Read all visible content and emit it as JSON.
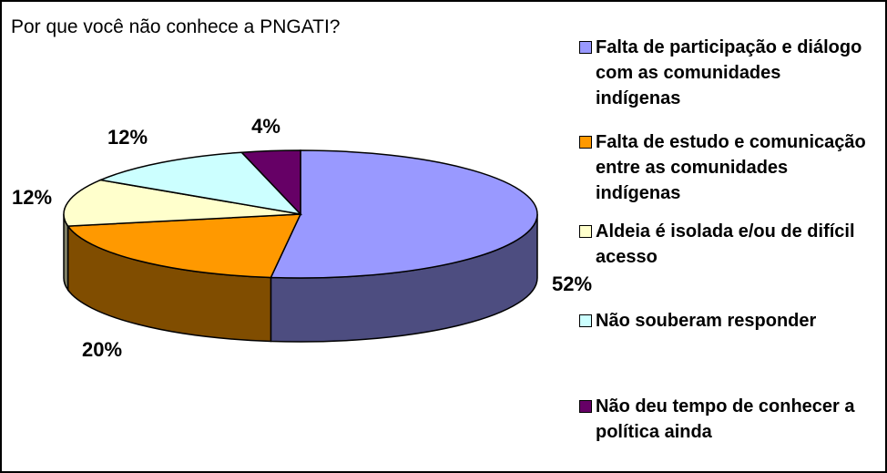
{
  "chart_data": {
    "type": "pie3d",
    "title": "Por que você não conhece a PNGATI?",
    "categories": [
      "Falta de participação e diálogo com as comunidades indígenas",
      "Falta de estudo e comunicação entre as comunidades indígenas",
      "Aldeia é isolada e/ou de difícil acesso",
      "Não souberam responder",
      "Não deu tempo de conhecer a política ainda"
    ],
    "values": [
      52,
      20,
      12,
      12,
      4
    ],
    "value_labels": [
      "52%",
      "20%",
      "12%",
      "12%",
      "4%"
    ],
    "colors": [
      "#9999ff",
      "#ff9900",
      "#ffffcc",
      "#ccffff",
      "#660066"
    ],
    "legend": "right"
  }
}
